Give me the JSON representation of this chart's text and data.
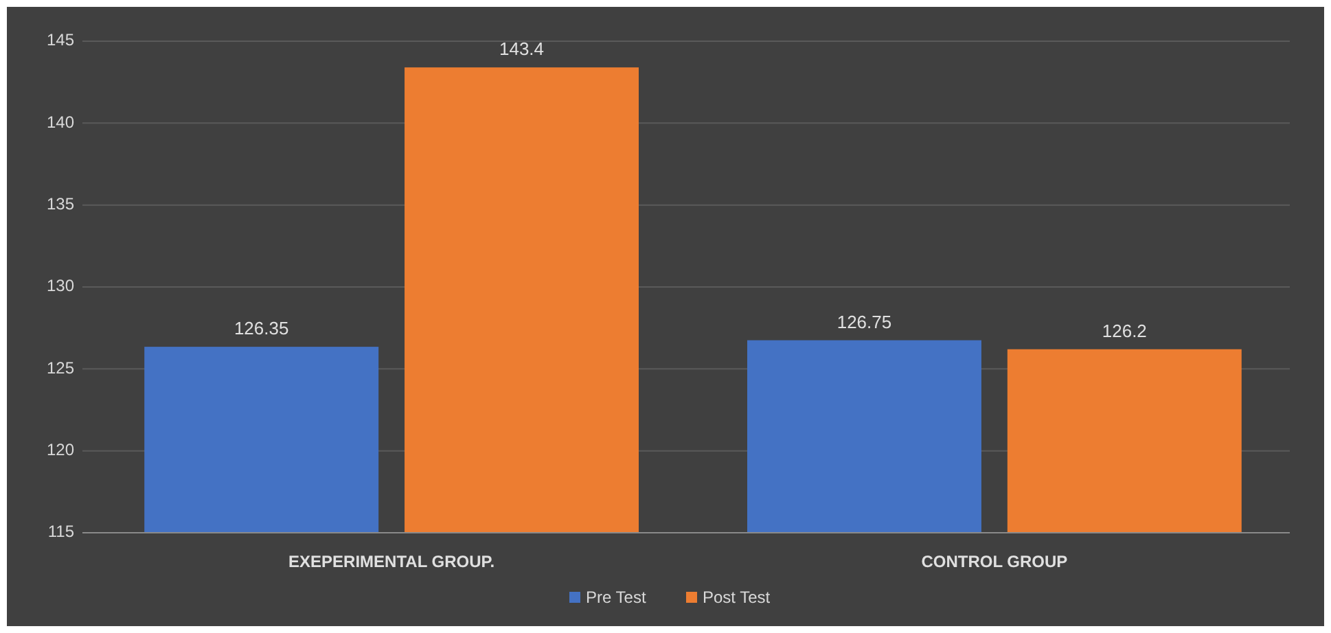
{
  "chart_data": {
    "type": "bar",
    "categories": [
      "EXEPERIMENTAL GROUP.",
      "CONTROL GROUP"
    ],
    "series": [
      {
        "name": "Pre Test",
        "color": "#4472c4",
        "values": [
          126.35,
          126.75
        ]
      },
      {
        "name": "Post Test",
        "color": "#ed7d31",
        "values": [
          143.4,
          126.2
        ]
      }
    ],
    "ylim": [
      115,
      145
    ],
    "yticks": [
      115,
      120,
      125,
      130,
      135,
      140,
      145
    ],
    "grid": "y",
    "legend": "bottom",
    "data_labels": true
  }
}
